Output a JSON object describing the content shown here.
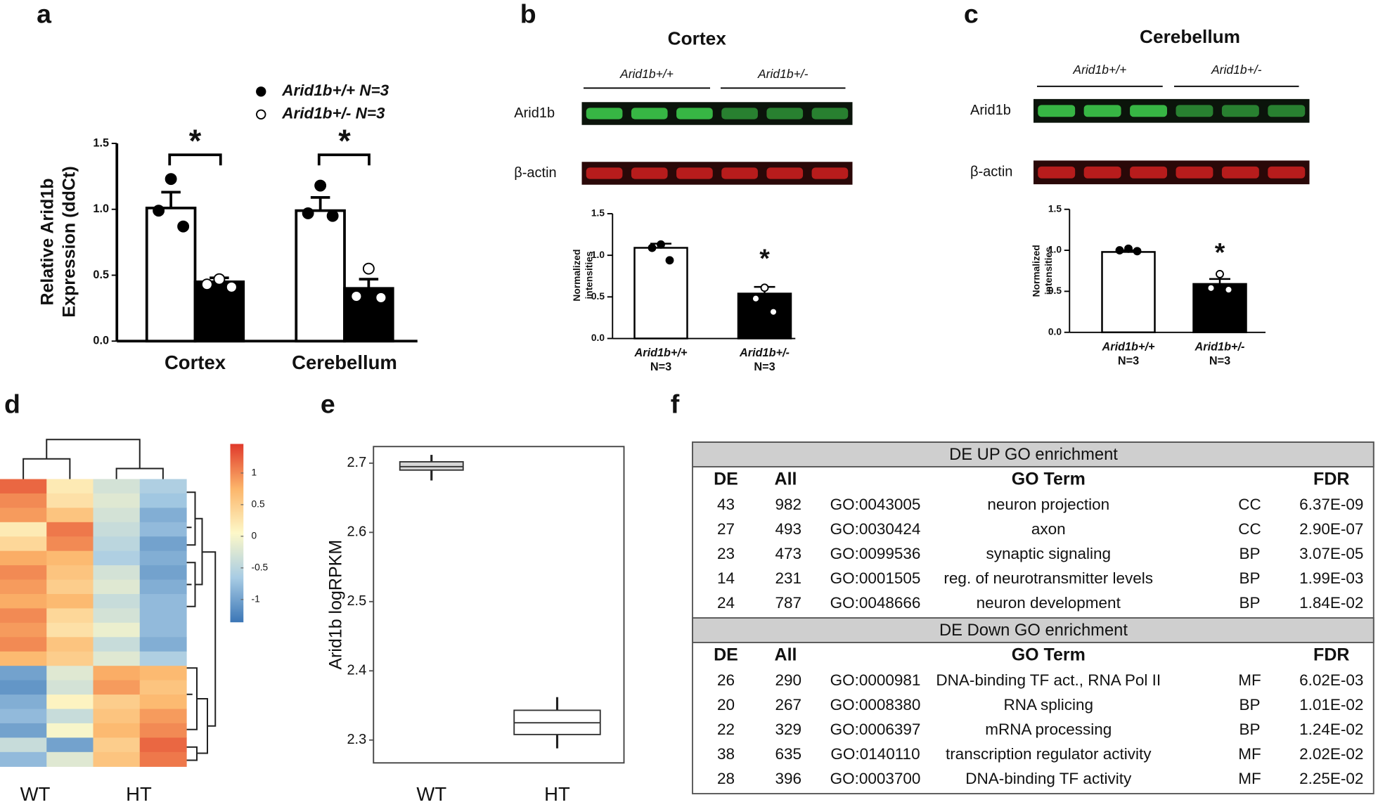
{
  "chart_data": [
    {
      "type": "bar",
      "panel_label": "a",
      "ylabel": [
        "Relative Arid1b",
        "Expression (ddCt)"
      ],
      "categories": [
        "Cortex",
        "Cerebellum"
      ],
      "series": [
        {
          "name": "Arid1b+/+ N=3",
          "color": "#ffffff",
          "values": [
            1.01,
            0.99
          ],
          "errors": [
            0.12,
            0.1
          ],
          "points": [
            [
              1.23,
              0.99,
              0.87
            ],
            [
              1.18,
              0.97,
              0.95
            ]
          ]
        },
        {
          "name": "Arid1b+/- N=3",
          "color": "#000000",
          "values": [
            0.45,
            0.4
          ],
          "errors": [
            0.03,
            0.07
          ],
          "points": [
            [
              0.47,
              0.43,
              0.41
            ],
            [
              0.55,
              0.34,
              0.33
            ]
          ]
        }
      ],
      "annotations": [
        "*",
        "*"
      ],
      "ylim": [
        0,
        1.5
      ],
      "yticks": [
        {
          "value": 0,
          "label": "0.0"
        },
        {
          "value": 0.5,
          "label": "0.5"
        },
        {
          "value": 1,
          "label": "1.0"
        },
        {
          "value": 1.5,
          "label": "1.5"
        }
      ]
    },
    {
      "type": "bar",
      "panel_label": "b",
      "title": "Cortex",
      "genotypes": [
        "Arid1b+/+",
        "Arid1b+/-"
      ],
      "bands": [
        "Arid1b",
        "β-actin"
      ],
      "ylabel": [
        "Normalized",
        "intensities"
      ],
      "categories": [
        [
          "Arid1b+/+",
          "N=3"
        ],
        [
          "Arid1b+/-",
          "N=3"
        ]
      ],
      "values": [
        1.09,
        0.54
      ],
      "errors": [
        0.05,
        0.08
      ],
      "colors": [
        "#ffffff",
        "#000000"
      ],
      "points": [
        [
          1.13,
          1.09,
          0.94
        ],
        [
          0.61,
          0.48,
          0.32
        ]
      ],
      "annotations": [
        "*"
      ],
      "ylim": [
        0,
        1.5
      ],
      "yticks": [
        {
          "value": 0,
          "label": "0.0"
        },
        {
          "value": 0.5,
          "label": "0.5"
        },
        {
          "value": 1,
          "label": "1.0"
        },
        {
          "value": 1.5,
          "label": "1.5"
        }
      ]
    },
    {
      "type": "bar",
      "panel_label": "c",
      "title": "Cerebellum",
      "genotypes": [
        "Arid1b+/+",
        "Arid1b+/-"
      ],
      "bands": [
        "Arid1b",
        "β-actin"
      ],
      "ylabel": [
        "Normalized",
        "intensities"
      ],
      "categories": [
        [
          "Arid1b+/+",
          "N=3"
        ],
        [
          "Arid1b+/-",
          "N=3"
        ]
      ],
      "values": [
        0.98,
        0.59
      ],
      "errors": [
        0.02,
        0.06
      ],
      "colors": [
        "#ffffff",
        "#000000"
      ],
      "points": [
        [
          1.02,
          1.0,
          0.99
        ],
        [
          0.71,
          0.54,
          0.52
        ]
      ],
      "annotations": [
        "*"
      ],
      "ylim": [
        0,
        1.5
      ],
      "yticks": [
        {
          "value": 0,
          "label": "0.0"
        },
        {
          "value": 0.5,
          "label": "0.5"
        },
        {
          "value": 1,
          "label": "1.0"
        },
        {
          "value": 1.5,
          "label": "1.5"
        }
      ]
    },
    {
      "type": "heatmap",
      "panel_label": "d",
      "column_groups": [
        "WT",
        "HT"
      ],
      "values": [
        [
          1.2,
          0.2,
          -0.3,
          -0.6
        ],
        [
          1.0,
          0.3,
          -0.2,
          -0.7
        ],
        [
          0.9,
          0.6,
          -0.3,
          -0.9
        ],
        [
          0.2,
          1.1,
          -0.4,
          -0.8
        ],
        [
          0.4,
          1.0,
          -0.5,
          -1.0
        ],
        [
          0.8,
          0.7,
          -0.6,
          -0.9
        ],
        [
          1.0,
          0.6,
          -0.3,
          -1.0
        ],
        [
          0.9,
          0.5,
          -0.2,
          -0.9
        ],
        [
          0.8,
          0.7,
          -0.4,
          -0.8
        ],
        [
          1.0,
          0.4,
          -0.3,
          -0.8
        ],
        [
          0.9,
          0.3,
          -0.1,
          -0.8
        ],
        [
          1.0,
          0.6,
          -0.4,
          -0.9
        ],
        [
          0.7,
          0.5,
          -0.2,
          -0.6
        ],
        [
          -1.0,
          -0.2,
          0.8,
          0.7
        ],
        [
          -1.1,
          -0.3,
          0.9,
          0.6
        ],
        [
          -0.9,
          0.1,
          0.5,
          0.7
        ],
        [
          -0.8,
          -0.4,
          0.6,
          0.9
        ],
        [
          -1.0,
          0.0,
          0.7,
          1.0
        ],
        [
          -0.4,
          -1.0,
          0.5,
          1.2
        ],
        [
          -0.8,
          -0.2,
          0.6,
          1.1
        ]
      ],
      "vlim": [
        -1.36,
        1.46
      ],
      "colors": [
        "#3b76b6",
        "#a8cce4",
        "#fdf8c8",
        "#fcb56a",
        "#e0392b"
      ],
      "colorbar_ticks": [
        1,
        0.5,
        0,
        -0.5,
        -1
      ]
    },
    {
      "type": "box",
      "panel_label": "e",
      "ylabel": "Arid1b logRPKM",
      "categories": [
        "WT",
        "HT"
      ],
      "q1": [
        2.69,
        2.308
      ],
      "median": [
        2.695,
        2.325
      ],
      "q3": [
        2.702,
        2.343
      ],
      "whislo": [
        2.675,
        2.288
      ],
      "whishi": [
        2.712,
        2.362
      ],
      "ylim": [
        2.267,
        2.724
      ],
      "yticks": [
        2.3,
        2.4,
        2.5,
        2.6,
        2.7
      ]
    }
  ],
  "table": {
    "panel_label": "f",
    "sections": [
      {
        "title": "DE UP GO enrichment",
        "header": [
          "DE",
          "All",
          "GO Term",
          "FDR"
        ],
        "rows": [
          [
            "43",
            "982",
            "GO:0043005",
            "neuron projection",
            "CC",
            "6.37E-09"
          ],
          [
            "27",
            "493",
            "GO:0030424",
            "axon",
            "CC",
            "2.90E-07"
          ],
          [
            "23",
            "473",
            "GO:0099536",
            "synaptic signaling",
            "BP",
            "3.07E-05"
          ],
          [
            "14",
            "231",
            "GO:0001505",
            "reg. of neurotransmitter levels",
            "BP",
            "1.99E-03"
          ],
          [
            "24",
            "787",
            "GO:0048666",
            "neuron development",
            "BP",
            "1.84E-02"
          ]
        ]
      },
      {
        "title": "DE Down GO enrichment",
        "header": [
          "DE",
          "All",
          "GO Term",
          "FDR"
        ],
        "rows": [
          [
            "26",
            "290",
            "GO:0000981",
            "DNA-binding TF act., RNA Pol II",
            "MF",
            "6.02E-03"
          ],
          [
            "20",
            "267",
            "GO:0008380",
            "RNA splicing",
            "BP",
            "1.01E-02"
          ],
          [
            "22",
            "329",
            "GO:0006397",
            "mRNA processing",
            "BP",
            "1.24E-02"
          ],
          [
            "38",
            "635",
            "GO:0140110",
            "transcription regulator activity",
            "MF",
            "2.02E-02"
          ],
          [
            "28",
            "396",
            "GO:0003700",
            "DNA-binding TF activity",
            "MF",
            "2.25E-02"
          ]
        ]
      }
    ]
  }
}
